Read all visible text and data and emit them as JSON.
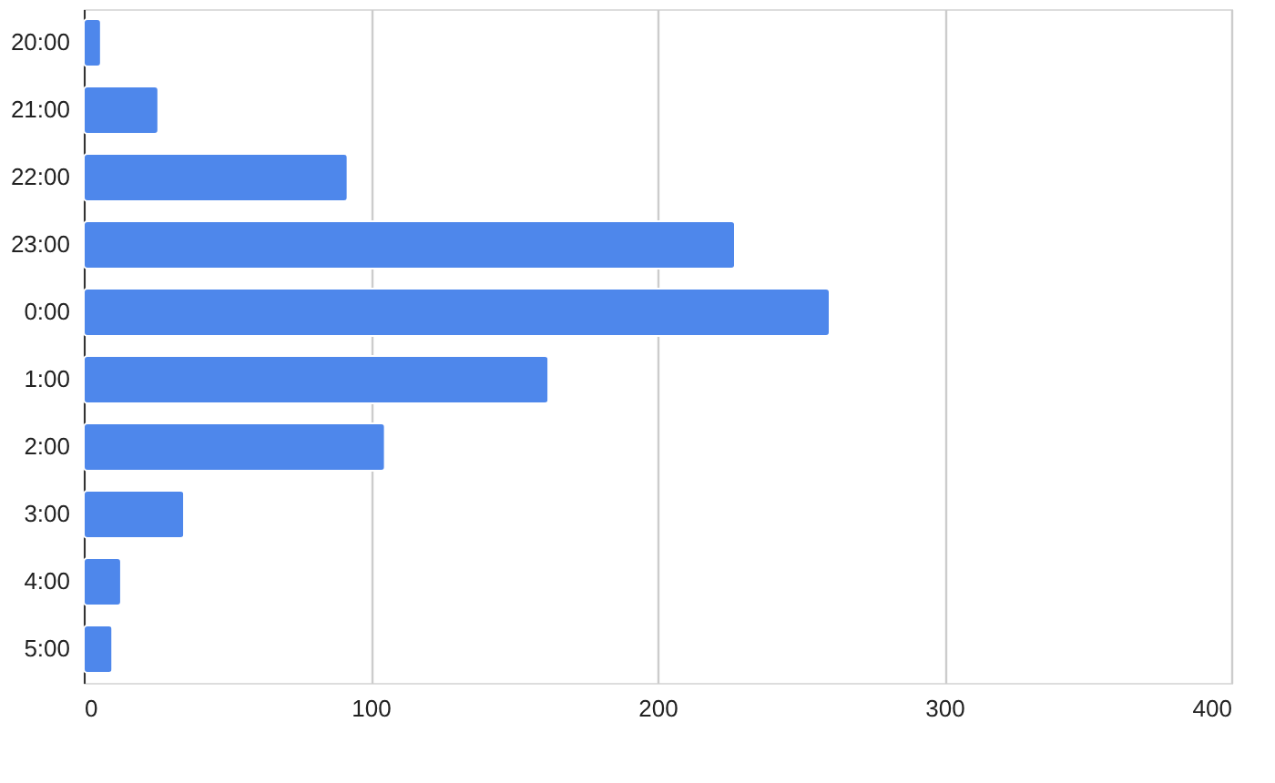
{
  "chart_data": {
    "type": "bar",
    "orientation": "horizontal",
    "categories": [
      "20:00",
      "21:00",
      "22:00",
      "23:00",
      "0:00",
      "1:00",
      "2:00",
      "3:00",
      "4:00",
      "5:00"
    ],
    "values": [
      6,
      26,
      92,
      227,
      260,
      162,
      105,
      35,
      13,
      10
    ],
    "color": "#4e87eb",
    "xlim": [
      0,
      400
    ],
    "xticks": [
      0,
      100,
      200,
      300,
      400
    ],
    "grid": "x"
  }
}
